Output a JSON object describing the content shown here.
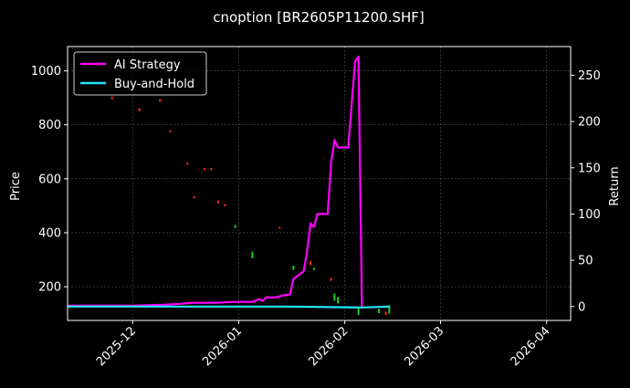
{
  "chart_data": {
    "type": "line",
    "title": "cnoption [BR2605P11200.SHF]",
    "ylabel_left": "Price",
    "ylabel_right": "Return",
    "ylim_left": [
      75,
      1090
    ],
    "ylim_right": [
      -15,
      281
    ],
    "xlim": [
      "2025-11-12",
      "2026-04-08"
    ],
    "x_ticks": [
      "2025-12",
      "2026-01",
      "2026-02",
      "2026-03",
      "2026-04"
    ],
    "x_tick_dates": [
      "2025-12-01",
      "2026-01-01",
      "2026-02-01",
      "2026-03-01",
      "2026-04-01"
    ],
    "y_ticks_left": [
      200,
      400,
      600,
      800,
      1000
    ],
    "y_ticks_right": [
      0,
      50,
      100,
      150,
      200,
      250
    ],
    "grid": true,
    "legend": "top-left",
    "colors": {
      "ai_strategy": "#ff00ff",
      "buy_and_hold": "#22e8ff",
      "candle_up": "#ff2222",
      "candle_down": "#22cc22"
    },
    "series": [
      {
        "name": "AI Strategy",
        "axis": "right",
        "color": "#ff00ff",
        "points": [
          [
            "2025-11-12",
            1
          ],
          [
            "2025-12-01",
            1
          ],
          [
            "2025-12-10",
            2
          ],
          [
            "2025-12-15",
            3
          ],
          [
            "2025-12-18",
            4
          ],
          [
            "2025-12-26",
            4
          ],
          [
            "2025-12-30",
            5
          ],
          [
            "2026-01-05",
            5
          ],
          [
            "2026-01-07",
            8
          ],
          [
            "2026-01-08",
            6
          ],
          [
            "2026-01-09",
            10
          ],
          [
            "2026-01-12",
            10
          ],
          [
            "2026-01-14",
            12
          ],
          [
            "2026-01-16",
            13
          ],
          [
            "2026-01-17",
            30
          ],
          [
            "2026-01-20",
            38
          ],
          [
            "2026-01-21",
            60
          ],
          [
            "2026-01-22",
            90
          ],
          [
            "2026-01-23",
            86
          ],
          [
            "2026-01-24",
            100
          ],
          [
            "2026-01-27",
            100
          ],
          [
            "2026-01-28",
            155
          ],
          [
            "2026-01-29",
            180
          ],
          [
            "2026-01-30",
            172
          ],
          [
            "2026-02-02",
            172
          ],
          [
            "2026-02-04",
            265
          ],
          [
            "2026-02-05",
            270
          ],
          [
            "2026-02-06",
            0
          ]
        ]
      },
      {
        "name": "Buy-and-Hold",
        "axis": "right",
        "color": "#22e8ff",
        "points": [
          [
            "2025-11-12",
            0
          ],
          [
            "2026-01-15",
            0
          ],
          [
            "2026-02-06",
            -1
          ],
          [
            "2026-02-14",
            0
          ]
        ]
      },
      {
        "name": "candles",
        "axis": "left",
        "type": "candlestick",
        "marks": [
          {
            "date": "2025-11-25",
            "low": 895,
            "high": 905,
            "dir": "up"
          },
          {
            "date": "2025-12-03",
            "low": 850,
            "high": 862,
            "dir": "up"
          },
          {
            "date": "2025-12-09",
            "low": 885,
            "high": 895,
            "dir": "up"
          },
          {
            "date": "2025-12-12",
            "low": 772,
            "high": 780,
            "dir": "up"
          },
          {
            "date": "2025-12-17",
            "low": 652,
            "high": 660,
            "dir": "up"
          },
          {
            "date": "2025-12-19",
            "low": 528,
            "high": 535,
            "dir": "up"
          },
          {
            "date": "2025-12-22",
            "low": 632,
            "high": 640,
            "dir": "up"
          },
          {
            "date": "2025-12-24",
            "low": 632,
            "high": 640,
            "dir": "up"
          },
          {
            "date": "2025-12-26",
            "low": 510,
            "high": 520,
            "dir": "up"
          },
          {
            "date": "2025-12-28",
            "low": 498,
            "high": 506,
            "dir": "up"
          },
          {
            "date": "2025-12-31",
            "low": 418,
            "high": 428,
            "dir": "down"
          },
          {
            "date": "2026-01-05",
            "low": 305,
            "high": 330,
            "dir": "down"
          },
          {
            "date": "2026-01-13",
            "low": 415,
            "high": 422,
            "dir": "up"
          },
          {
            "date": "2026-01-17",
            "low": 262,
            "high": 278,
            "dir": "down"
          },
          {
            "date": "2026-01-22",
            "low": 280,
            "high": 295,
            "dir": "up"
          },
          {
            "date": "2026-01-23",
            "low": 262,
            "high": 270,
            "dir": "down"
          },
          {
            "date": "2026-01-28",
            "low": 222,
            "high": 232,
            "dir": "up"
          },
          {
            "date": "2026-01-29",
            "low": 148,
            "high": 175,
            "dir": "down"
          },
          {
            "date": "2026-01-30",
            "low": 138,
            "high": 162,
            "dir": "down"
          },
          {
            "date": "2026-02-05",
            "low": 95,
            "high": 125,
            "dir": "down"
          },
          {
            "date": "2026-02-11",
            "low": 102,
            "high": 118,
            "dir": "down"
          },
          {
            "date": "2026-02-13",
            "low": 95,
            "high": 108,
            "dir": "up"
          },
          {
            "date": "2026-02-14",
            "low": 100,
            "high": 132,
            "dir": "down"
          }
        ]
      }
    ]
  }
}
